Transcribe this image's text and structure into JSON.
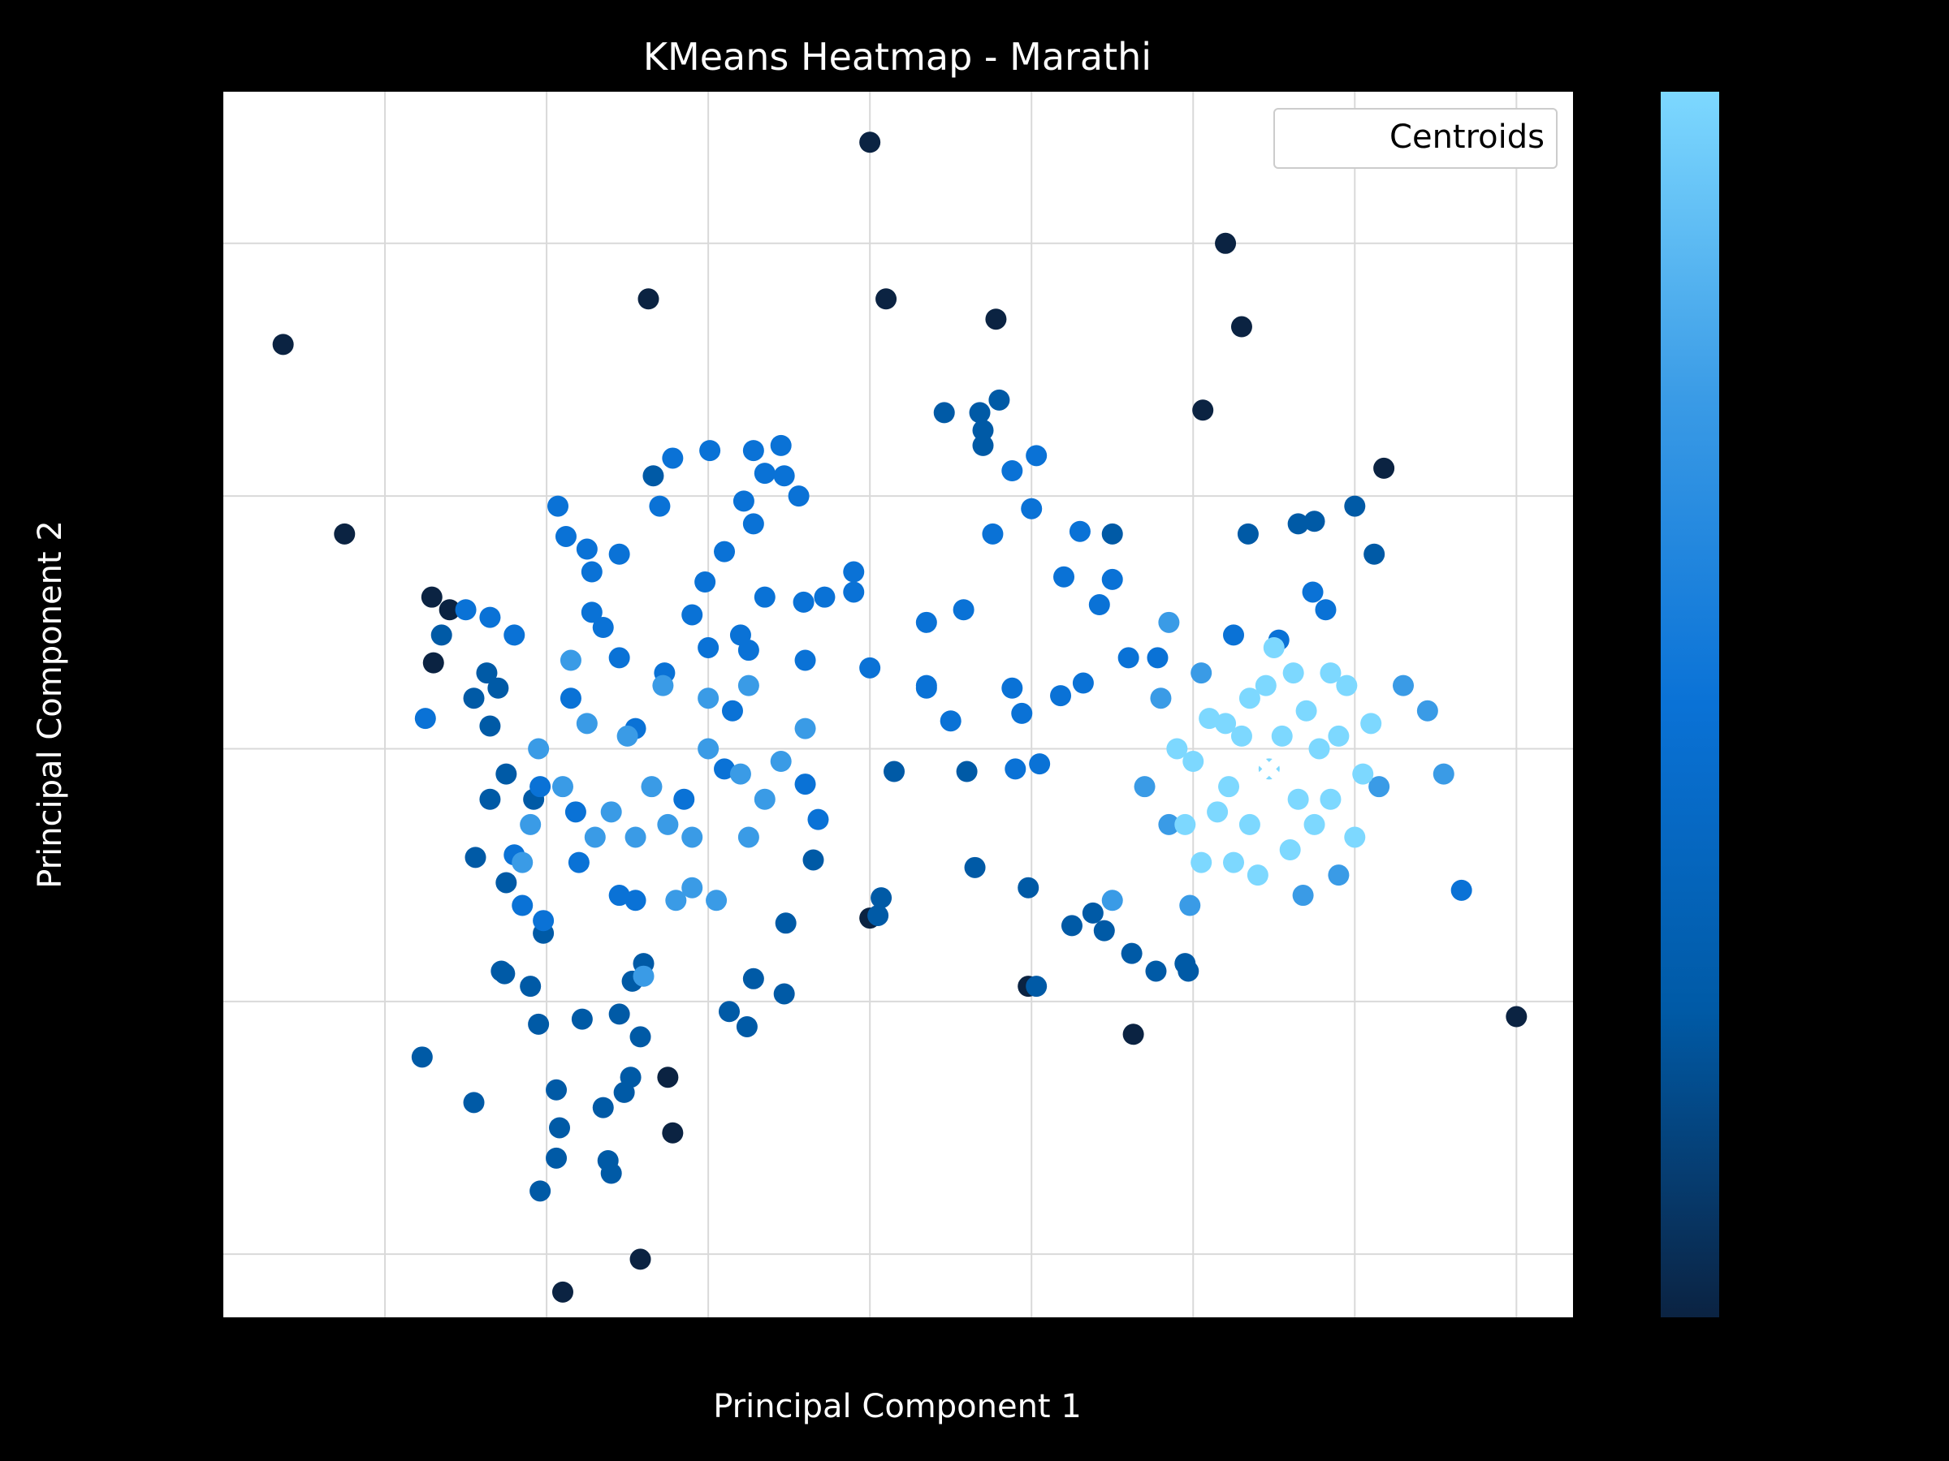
{
  "chart_data": {
    "type": "scatter",
    "title": "KMeans Heatmap - Marathi",
    "xlabel": "Principal Component 1",
    "ylabel": "Principal Component 2",
    "xlim": [
      -1.0,
      7.35
    ],
    "ylim": [
      -2.25,
      2.6
    ],
    "xtick_values": [
      0,
      1,
      2,
      3,
      4,
      5,
      6,
      7
    ],
    "ytick_values": [
      -2,
      -1,
      0,
      1,
      2
    ],
    "tick_labels_shown": false,
    "grid": true,
    "legend": {
      "entries": [
        "Centroids"
      ],
      "placement": "top-right"
    },
    "colorbar": {
      "placement": "right",
      "colors": [
        "#0b2342",
        "#005aa6",
        "#0a72d6",
        "#3a9be6",
        "#7dd8ff"
      ]
    },
    "centroid": {
      "x": 5.47,
      "y": -0.08,
      "marker": "x",
      "color": "#ffffff",
      "label": "Centroids"
    },
    "series": [
      {
        "values": [
          [
            -0.63,
            1.6
          ],
          [
            -0.25,
            0.85
          ],
          [
            1.63,
            1.78
          ],
          [
            3.0,
            2.4
          ],
          [
            3.1,
            1.78
          ],
          [
            3.78,
            1.7
          ],
          [
            5.3,
            1.67
          ],
          [
            5.06,
            1.34
          ],
          [
            6.18,
            1.11
          ],
          [
            5.2,
            2.0
          ],
          [
            0.29,
            0.6
          ],
          [
            0.4,
            0.55
          ],
          [
            0.3,
            0.34
          ],
          [
            7.0,
            -1.06
          ],
          [
            1.58,
            -2.02
          ],
          [
            4.63,
            -1.13
          ],
          [
            3.0,
            -0.67
          ],
          [
            3.98,
            -0.94
          ],
          [
            1.1,
            -2.15
          ],
          [
            1.75,
            -1.3
          ],
          [
            1.78,
            -1.52
          ]
        ]
      },
      {
        "values": [
          [
            1.66,
            1.08
          ],
          [
            3.68,
            1.33
          ],
          [
            3.7,
            1.26
          ],
          [
            3.8,
            1.38
          ],
          [
            3.46,
            1.33
          ],
          [
            3.7,
            1.2
          ],
          [
            6.0,
            0.96
          ],
          [
            5.65,
            0.89
          ],
          [
            5.75,
            0.9
          ],
          [
            6.12,
            0.77
          ],
          [
            5.34,
            0.85
          ],
          [
            4.03,
            -0.94
          ],
          [
            4.5,
            0.85
          ],
          [
            0.63,
            0.3
          ],
          [
            0.65,
            0.09
          ],
          [
            0.75,
            -0.1
          ],
          [
            0.55,
            0.2
          ],
          [
            0.65,
            -0.2
          ],
          [
            0.35,
            0.45
          ],
          [
            0.56,
            -0.43
          ],
          [
            0.7,
            0.24
          ],
          [
            0.92,
            -0.2
          ],
          [
            0.75,
            -0.53
          ],
          [
            1.45,
            -1.05
          ],
          [
            1.58,
            -1.14
          ],
          [
            1.52,
            -1.3
          ],
          [
            1.53,
            -0.92
          ],
          [
            1.6,
            -0.85
          ],
          [
            2.28,
            -0.91
          ],
          [
            2.13,
            -1.04
          ],
          [
            2.24,
            -1.1
          ],
          [
            2.47,
            -0.97
          ],
          [
            3.05,
            -0.66
          ],
          [
            2.48,
            -0.69
          ],
          [
            3.15,
            -0.09
          ],
          [
            2.65,
            -0.44
          ],
          [
            3.07,
            -0.59
          ],
          [
            0.95,
            -1.09
          ],
          [
            1.22,
            -1.07
          ],
          [
            1.06,
            -1.35
          ],
          [
            1.35,
            -1.42
          ],
          [
            1.48,
            -1.36
          ],
          [
            1.08,
            -1.5
          ],
          [
            1.38,
            -1.63
          ],
          [
            1.4,
            -1.68
          ],
          [
            0.96,
            -1.75
          ],
          [
            1.06,
            -1.62
          ],
          [
            0.55,
            -1.4
          ],
          [
            0.23,
            -1.22
          ],
          [
            0.74,
            -0.89
          ],
          [
            0.72,
            -0.88
          ],
          [
            0.9,
            -0.94
          ],
          [
            0.98,
            -0.73
          ],
          [
            3.98,
            -0.55
          ],
          [
            4.25,
            -0.7
          ],
          [
            4.38,
            -0.65
          ],
          [
            4.45,
            -0.72
          ],
          [
            4.62,
            -0.81
          ],
          [
            4.77,
            -0.88
          ],
          [
            4.97,
            -0.88
          ],
          [
            4.95,
            -0.85
          ],
          [
            3.65,
            -0.47
          ],
          [
            3.6,
            -0.09
          ]
        ]
      },
      {
        "values": [
          [
            1.07,
            0.96
          ],
          [
            1.12,
            0.84
          ],
          [
            1.28,
            0.7
          ],
          [
            2.56,
            1.0
          ],
          [
            2.28,
            0.89
          ],
          [
            2.22,
            0.98
          ],
          [
            2.1,
            0.78
          ],
          [
            2.35,
            1.09
          ],
          [
            2.01,
            1.18
          ],
          [
            2.47,
            1.08
          ],
          [
            2.28,
            1.18
          ],
          [
            2.45,
            1.2
          ],
          [
            1.7,
            0.96
          ],
          [
            1.78,
            1.15
          ],
          [
            1.45,
            0.77
          ],
          [
            1.25,
            0.79
          ],
          [
            1.28,
            0.54
          ],
          [
            1.35,
            0.48
          ],
          [
            1.45,
            0.36
          ],
          [
            1.73,
            0.3
          ],
          [
            1.9,
            0.53
          ],
          [
            1.98,
            0.66
          ],
          [
            2.2,
            0.45
          ],
          [
            2.35,
            0.6
          ],
          [
            2.59,
            0.58
          ],
          [
            2.72,
            0.6
          ],
          [
            2.9,
            0.7
          ],
          [
            3.0,
            0.32
          ],
          [
            3.35,
            0.24
          ],
          [
            2.25,
            0.39
          ],
          [
            3.35,
            0.5
          ],
          [
            3.35,
            0.25
          ],
          [
            3.5,
            0.11
          ],
          [
            3.58,
            0.55
          ],
          [
            3.76,
            0.85
          ],
          [
            3.88,
            1.1
          ],
          [
            4.03,
            1.16
          ],
          [
            4.3,
            0.86
          ],
          [
            4.42,
            0.57
          ],
          [
            4.6,
            0.36
          ],
          [
            5.53,
            0.43
          ],
          [
            5.25,
            0.45
          ],
          [
            5.74,
            0.62
          ],
          [
            5.82,
            0.55
          ],
          [
            4.32,
            0.26
          ],
          [
            4.18,
            0.21
          ],
          [
            3.94,
            0.14
          ],
          [
            3.88,
            0.24
          ],
          [
            2.9,
            0.62
          ],
          [
            2.6,
            0.35
          ],
          [
            4.0,
            0.95
          ],
          [
            4.2,
            0.68
          ],
          [
            4.5,
            0.67
          ],
          [
            1.55,
            0.08
          ],
          [
            0.25,
            0.12
          ],
          [
            0.5,
            0.55
          ],
          [
            0.65,
            0.52
          ],
          [
            0.8,
            0.45
          ],
          [
            1.15,
            0.2
          ],
          [
            0.96,
            -0.15
          ],
          [
            2.6,
            -0.14
          ],
          [
            2.68,
            -0.28
          ],
          [
            3.9,
            -0.08
          ],
          [
            4.05,
            -0.06
          ],
          [
            4.78,
            0.36
          ],
          [
            6.66,
            -0.56
          ],
          [
            2.0,
            0.4
          ],
          [
            2.15,
            0.15
          ],
          [
            2.1,
            -0.08
          ],
          [
            1.85,
            -0.2
          ],
          [
            1.55,
            -0.6
          ],
          [
            1.45,
            -0.58
          ],
          [
            1.2,
            -0.45
          ],
          [
            0.98,
            -0.68
          ],
          [
            0.85,
            -0.62
          ],
          [
            1.18,
            -0.25
          ],
          [
            0.8,
            -0.42
          ]
        ]
      },
      {
        "values": [
          [
            0.85,
            -0.45
          ],
          [
            1.1,
            -0.15
          ],
          [
            1.5,
            0.05
          ],
          [
            1.75,
            -0.3
          ],
          [
            2.0,
            0.0
          ],
          [
            2.2,
            -0.1
          ],
          [
            1.4,
            -0.25
          ],
          [
            1.3,
            -0.35
          ],
          [
            1.9,
            -0.55
          ],
          [
            2.05,
            -0.6
          ],
          [
            2.25,
            -0.35
          ],
          [
            2.45,
            -0.05
          ],
          [
            2.6,
            0.08
          ],
          [
            1.25,
            0.1
          ],
          [
            1.15,
            0.35
          ],
          [
            1.72,
            0.25
          ],
          [
            2.0,
            0.2
          ],
          [
            2.25,
            0.25
          ],
          [
            1.6,
            -0.9
          ],
          [
            1.8,
            -0.6
          ],
          [
            4.5,
            -0.6
          ],
          [
            4.85,
            -0.3
          ],
          [
            4.98,
            -0.62
          ],
          [
            5.68,
            -0.58
          ],
          [
            5.9,
            -0.5
          ],
          [
            6.15,
            -0.15
          ],
          [
            6.55,
            -0.1
          ],
          [
            6.45,
            0.15
          ],
          [
            6.3,
            0.25
          ],
          [
            4.8,
            0.2
          ],
          [
            4.85,
            0.5
          ],
          [
            4.7,
            -0.15
          ],
          [
            5.05,
            0.3
          ],
          [
            1.55,
            -0.35
          ],
          [
            1.9,
            -0.35
          ],
          [
            1.65,
            -0.15
          ],
          [
            2.35,
            -0.2
          ],
          [
            0.9,
            -0.3
          ],
          [
            0.95,
            0.0
          ]
        ]
      },
      {
        "values": [
          [
            5.47,
            -0.08
          ],
          [
            5.2,
            0.1
          ],
          [
            5.7,
            0.15
          ],
          [
            5.85,
            -0.2
          ],
          [
            5.35,
            -0.3
          ],
          [
            5.0,
            -0.05
          ],
          [
            5.6,
            -0.4
          ],
          [
            5.9,
            0.05
          ],
          [
            5.45,
            0.25
          ],
          [
            5.15,
            -0.25
          ],
          [
            5.75,
            -0.3
          ],
          [
            5.3,
            0.05
          ],
          [
            5.55,
            0.05
          ],
          [
            5.1,
            0.12
          ],
          [
            6.05,
            -0.1
          ],
          [
            5.95,
            0.25
          ],
          [
            5.62,
            0.3
          ],
          [
            5.22,
            -0.15
          ],
          [
            5.4,
            -0.5
          ],
          [
            5.78,
            0.0
          ],
          [
            4.95,
            -0.3
          ],
          [
            5.05,
            -0.45
          ],
          [
            5.25,
            -0.45
          ],
          [
            5.65,
            -0.2
          ],
          [
            6.1,
            0.1
          ],
          [
            5.85,
            0.3
          ],
          [
            5.5,
            0.4
          ],
          [
            4.9,
            0.0
          ],
          [
            6.0,
            -0.35
          ],
          [
            5.35,
            0.2
          ]
        ]
      }
    ]
  }
}
